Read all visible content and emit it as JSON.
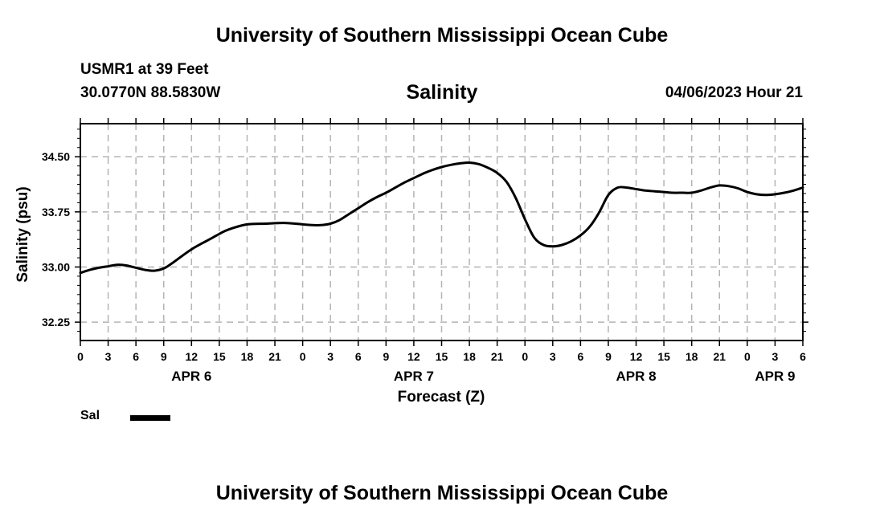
{
  "header": {
    "title": "University of Southern Mississippi Ocean Cube",
    "station": "USMR1 at 39 Feet",
    "coords": "30.0770N  88.5830W",
    "datetime": "04/06/2023 Hour 21"
  },
  "footer": {
    "title": "University of Southern Mississippi Ocean Cube"
  },
  "chart_data": {
    "type": "line",
    "title": "Salinity",
    "xlabel": "Forecast (Z)",
    "ylabel": "Salinity (psu)",
    "xlim": [
      0,
      78
    ],
    "ylim": [
      32.0,
      34.95
    ],
    "grid": true,
    "x_ticks": [
      0,
      3,
      6,
      9,
      12,
      15,
      18,
      21,
      24,
      27,
      30,
      33,
      36,
      39,
      42,
      45,
      48,
      51,
      54,
      57,
      60,
      63,
      66,
      69,
      72,
      75,
      78
    ],
    "x_tick_labels": [
      "0",
      "3",
      "6",
      "9",
      "12",
      "15",
      "18",
      "21",
      "0",
      "3",
      "6",
      "9",
      "12",
      "15",
      "18",
      "21",
      "0",
      "3",
      "6",
      "9",
      "12",
      "15",
      "18",
      "21",
      "0",
      "3",
      "6"
    ],
    "date_labels": [
      {
        "hour": 12,
        "label": "APR 6"
      },
      {
        "hour": 36,
        "label": "APR 7"
      },
      {
        "hour": 60,
        "label": "APR 8"
      },
      {
        "hour": 75,
        "label": "APR 9"
      }
    ],
    "y_ticks": [
      32.25,
      33.0,
      33.75,
      34.5
    ],
    "y_tick_labels": [
      "32.25",
      "33.00",
      "33.75",
      "34.50"
    ],
    "legend": [
      {
        "name": "Sal",
        "color": "#000000"
      }
    ],
    "series": [
      {
        "name": "Sal",
        "color": "#000000",
        "x": [
          0,
          1,
          2,
          3,
          4,
          5,
          6,
          7,
          8,
          9,
          10,
          12,
          14,
          15,
          16,
          18,
          20,
          22,
          24,
          25,
          26,
          27,
          28,
          29,
          30,
          31,
          32,
          33,
          34,
          35,
          36,
          37,
          38,
          39,
          40,
          41,
          42,
          43,
          44,
          45,
          46,
          47,
          48,
          49,
          50,
          51,
          52,
          53,
          54,
          55,
          56,
          57,
          58,
          59,
          60,
          61,
          62,
          63,
          64,
          65,
          66,
          67,
          68,
          69,
          70,
          71,
          72,
          73,
          74,
          75,
          76,
          77,
          78
        ],
        "values": [
          32.92,
          32.96,
          32.99,
          33.01,
          33.03,
          33.02,
          32.99,
          32.96,
          32.95,
          32.98,
          33.06,
          33.24,
          33.38,
          33.45,
          33.51,
          33.58,
          33.59,
          33.6,
          33.58,
          33.57,
          33.57,
          33.59,
          33.64,
          33.72,
          33.8,
          33.88,
          33.95,
          34.01,
          34.08,
          34.15,
          34.21,
          34.27,
          34.32,
          34.36,
          34.39,
          34.41,
          34.42,
          34.4,
          34.35,
          34.28,
          34.16,
          33.94,
          33.65,
          33.4,
          33.3,
          33.28,
          33.3,
          33.35,
          33.43,
          33.55,
          33.74,
          33.98,
          34.08,
          34.08,
          34.06,
          34.04,
          34.03,
          34.02,
          34.01,
          34.01,
          34.01,
          34.04,
          34.08,
          34.11,
          34.1,
          34.07,
          34.02,
          33.99,
          33.98,
          33.99,
          34.01,
          34.04,
          34.08
        ]
      }
    ]
  }
}
